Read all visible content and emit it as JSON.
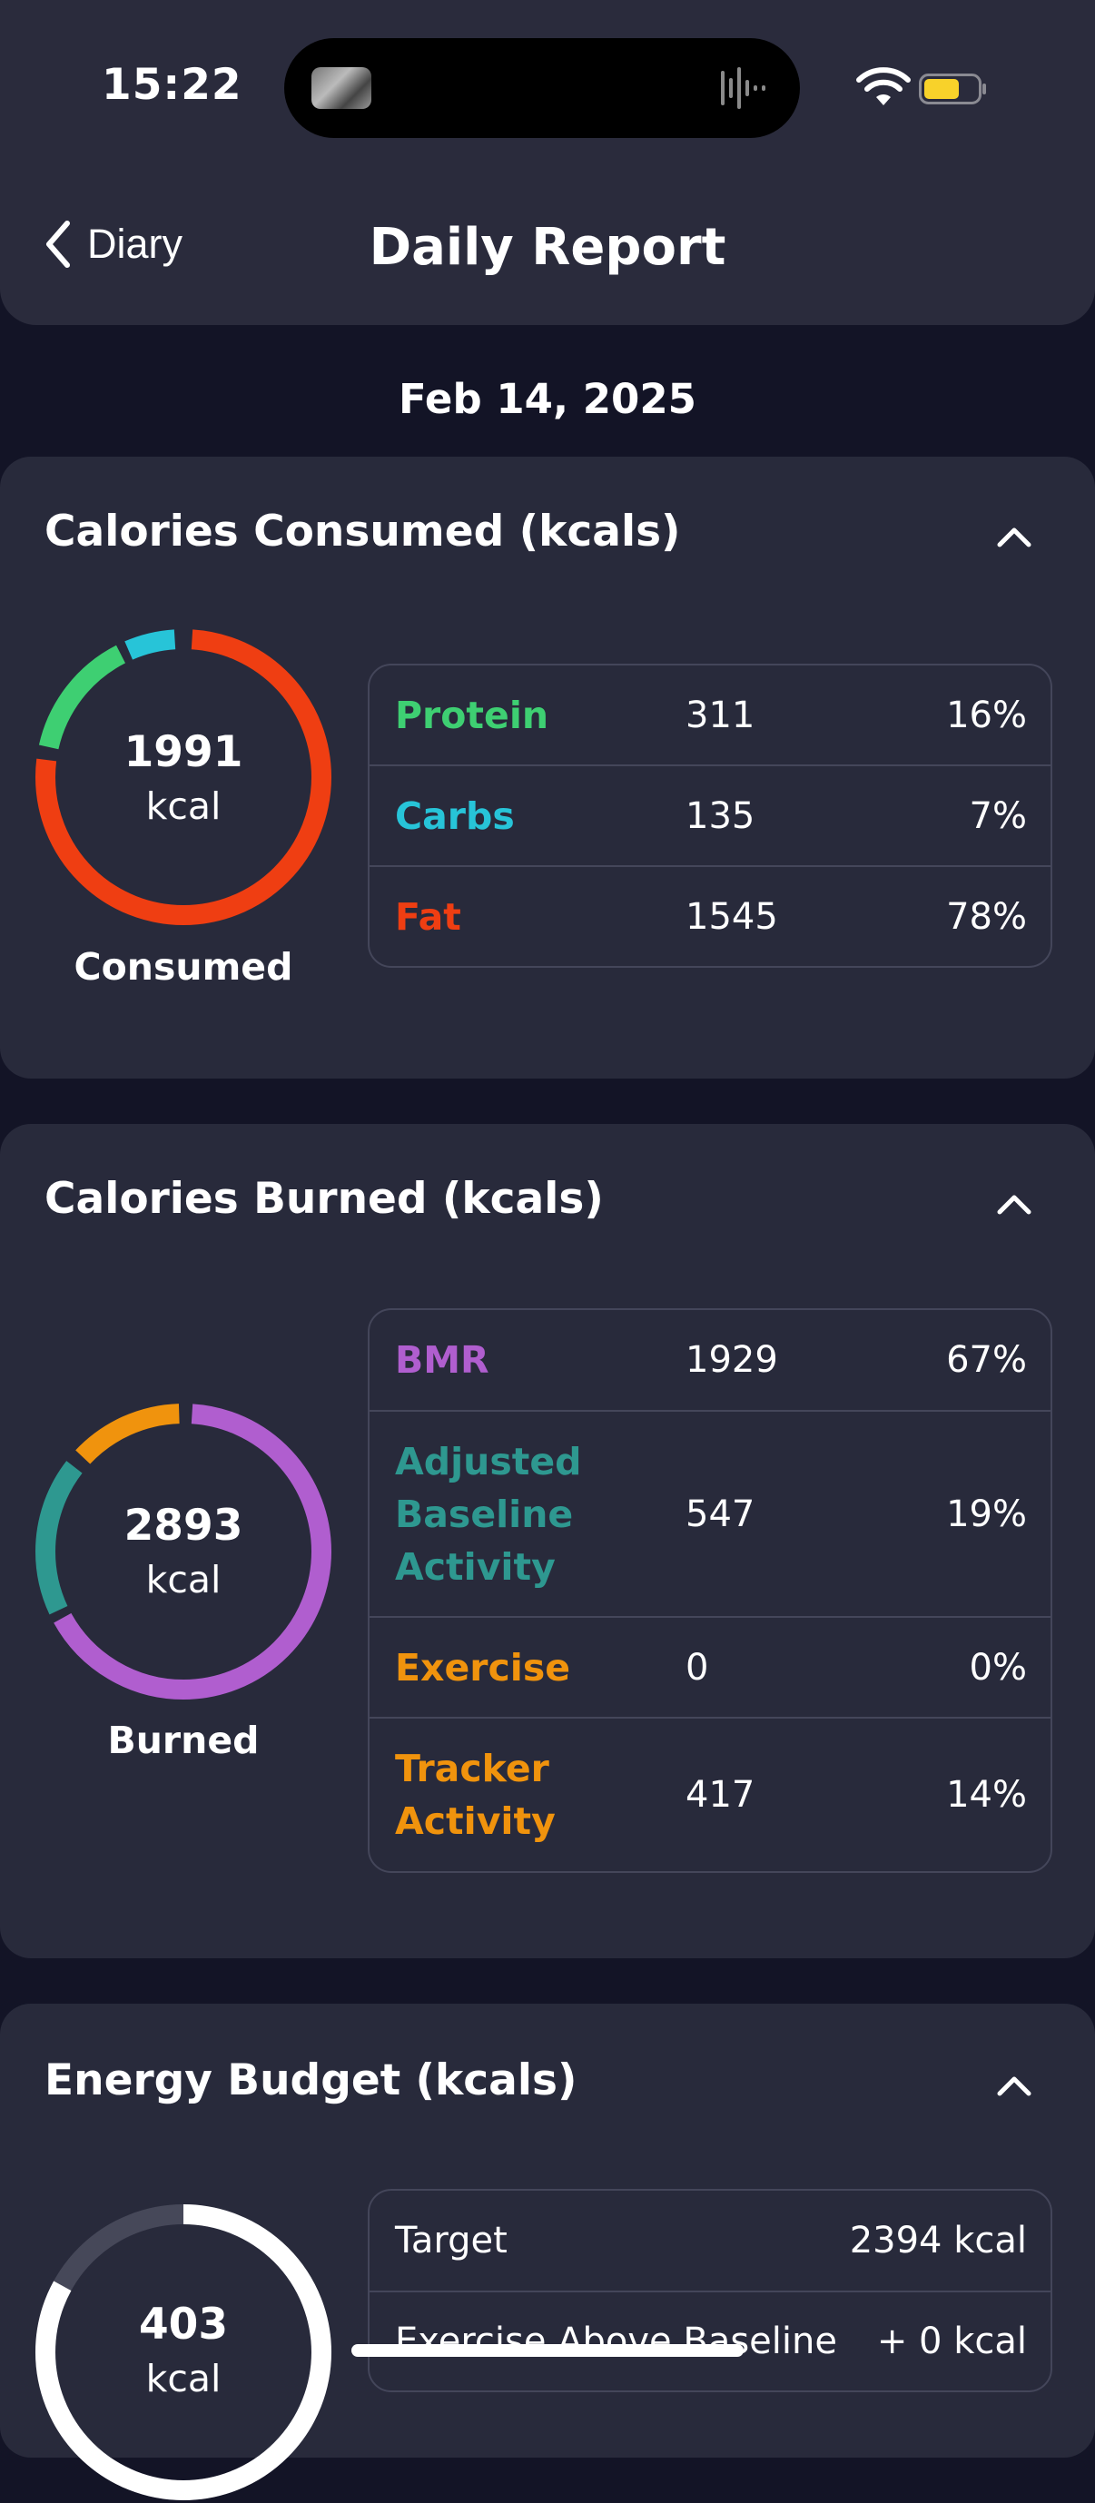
{
  "status": {
    "time": "15:22"
  },
  "nav": {
    "back_label": "Diary",
    "title": "Daily Report"
  },
  "date": "Feb 14, 2025",
  "consumed": {
    "title": "Calories Consumed (kcals)",
    "total": "1991",
    "unit": "kcal",
    "caption": "Consumed",
    "rows": [
      {
        "name": "Protein",
        "value": "311",
        "pct": "16%",
        "color": "#3ecf72"
      },
      {
        "name": "Carbs",
        "value": "135",
        "pct": "7%",
        "color": "#27c4d8"
      },
      {
        "name": "Fat",
        "value": "1545",
        "pct": "78%",
        "color": "#ef3e12"
      }
    ]
  },
  "burned": {
    "title": "Calories Burned (kcals)",
    "total": "2893",
    "unit": "kcal",
    "caption": "Burned",
    "rows": [
      {
        "name": "BMR",
        "value": "1929",
        "pct": "67%",
        "color": "#b05ecf"
      },
      {
        "name": "Adjusted Baseline Activity",
        "value": "547",
        "pct": "19%",
        "color": "#2e9890"
      },
      {
        "name": "Exercise",
        "value": "0",
        "pct": "0%",
        "color": "#f0930d"
      },
      {
        "name": "Tracker Activity",
        "value": "417",
        "pct": "14%",
        "color": "#f0930d"
      }
    ]
  },
  "budget": {
    "title": "Energy Budget (kcals)",
    "total": "403",
    "unit": "kcal",
    "fill_fraction": 0.83,
    "rows": [
      {
        "label": "Target",
        "value": "2394 kcal"
      },
      {
        "label": "Exercise Above Baseline",
        "value": "+ 0 kcal"
      }
    ]
  }
}
